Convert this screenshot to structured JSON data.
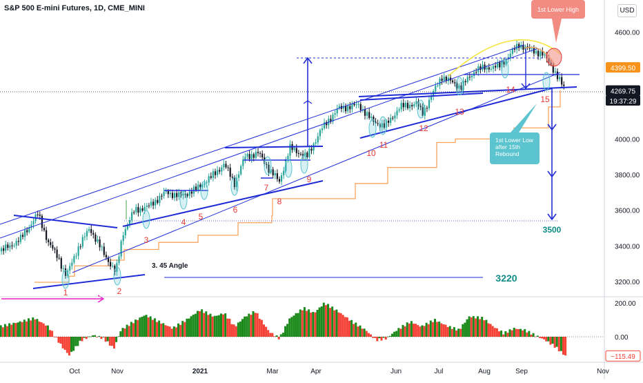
{
  "header": {
    "title": "S&P 500 E-mini Futures, 1D, CME_MINI",
    "currency": "USD"
  },
  "colors": {
    "candle_up": "#26a69a",
    "candle_down": "#131722",
    "trend_blue": "#1f2bd6",
    "orange_step": "#f7a35c",
    "yellow_arc": "#f5e642",
    "label_red": "#e53935",
    "teal_text": "#0c8c85",
    "osc_green": "#1b8a1b",
    "osc_red": "#f44336",
    "magenta": "#e91ec5",
    "callout_red_bg": "#f28b82",
    "callout_teal_bg": "#5bc4cf"
  },
  "chart_data": {
    "type": "candlestick",
    "price_axis": {
      "ylim": [
        3140,
        4700
      ],
      "ticks": [
        3200,
        3400,
        3600,
        3800,
        4000,
        4200,
        4400,
        4600
      ],
      "tick_labels": [
        "3200.00",
        "3400.00",
        "3600.00",
        "3800.00",
        "4000.00",
        "",
        "",
        "4600.00"
      ]
    },
    "time_axis": {
      "labels": [
        "Oct",
        "Nov",
        "2021",
        "Mar",
        "Apr",
        "Jun",
        "Jul",
        "Aug",
        "Sep",
        "Nov"
      ]
    },
    "price_tags": [
      {
        "value": 4399.5,
        "label": "4399.50",
        "kind": "orange"
      },
      {
        "value": 4269.75,
        "label": "4269.75",
        "kind": "dark"
      },
      {
        "value": 4230,
        "label": "19:37:29",
        "kind": "dark"
      }
    ],
    "levels": [
      {
        "value": 3500,
        "label": "3500"
      },
      {
        "value": 3220,
        "label": "3220"
      }
    ],
    "wave_labels": [
      "1",
      "2",
      "3",
      "4",
      "5",
      "6",
      "7",
      "8",
      "9",
      "10",
      "11",
      "12",
      "13",
      "14",
      "15"
    ],
    "annotations": {
      "angle_label": "3. 45 Angle",
      "first_lower_high": "1st Lower High",
      "first_lower_low": [
        "1st Lower Low",
        "after 15th",
        "Rebound"
      ]
    },
    "oscillator": {
      "ylim": [
        -130,
        215
      ],
      "ticks": [
        200,
        0
      ],
      "tick_labels": [
        "200.00",
        "0.00"
      ],
      "last_value": -115.49,
      "last_label": "−115.49"
    }
  }
}
